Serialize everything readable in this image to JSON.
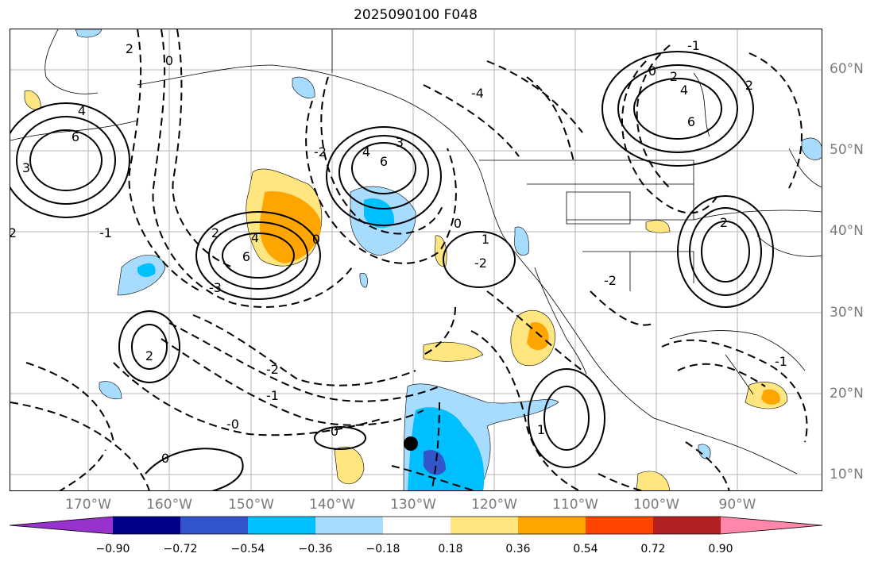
{
  "title": "2025090100 F048",
  "lat_labels": [
    "60°N",
    "50°N",
    "40°N",
    "30°N",
    "20°N",
    "10°N"
  ],
  "lon_labels": [
    "170°W",
    "160°W",
    "150°W",
    "140°W",
    "130°W",
    "120°W",
    "110°W",
    "100°W",
    "90°W"
  ],
  "colorbar": {
    "tick_labels": [
      "−0.90",
      "−0.72",
      "−0.54",
      "−0.36",
      "−0.18",
      "0.18",
      "0.36",
      "0.54",
      "0.72",
      "0.90"
    ],
    "colors": [
      "#9932cc",
      "#00008b",
      "#3355cc",
      "#00bfff",
      "#a8dcff",
      "#ffffff",
      "#ffe680",
      "#ffa500",
      "#ff4500",
      "#b22222",
      "#ff88aa"
    ]
  },
  "contour_labels": [
    {
      "text": "4"
    },
    {
      "text": "6"
    },
    {
      "text": "3"
    },
    {
      "text": "2"
    },
    {
      "text": "-2"
    },
    {
      "text": "0"
    },
    {
      "text": "4"
    },
    {
      "text": "6"
    },
    {
      "text": "-3"
    },
    {
      "text": "4"
    },
    {
      "text": "6"
    },
    {
      "text": "3"
    },
    {
      "text": "-2"
    },
    {
      "text": "2"
    },
    {
      "text": "0"
    },
    {
      "text": "-1"
    },
    {
      "text": "-0"
    },
    {
      "text": "-2"
    },
    {
      "text": "-1"
    },
    {
      "text": "0"
    },
    {
      "text": "-4"
    },
    {
      "text": "2"
    },
    {
      "text": "4"
    },
    {
      "text": "6"
    },
    {
      "text": "2"
    },
    {
      "text": "0"
    },
    {
      "text": "-1"
    },
    {
      "text": "2"
    },
    {
      "text": "-2"
    },
    {
      "text": "-1"
    },
    {
      "text": "1"
    },
    {
      "text": "0"
    },
    {
      "text": "0"
    },
    {
      "text": "-2"
    },
    {
      "text": "1"
    },
    {
      "text": "2"
    }
  ],
  "colors": {
    "pos_fill_light": "#ffe680",
    "pos_fill_mid": "#ffa500",
    "neg_fill_light": "#a8dcff",
    "neg_fill_mid": "#00bfff",
    "neg_fill_dark": "#3355cc"
  }
}
